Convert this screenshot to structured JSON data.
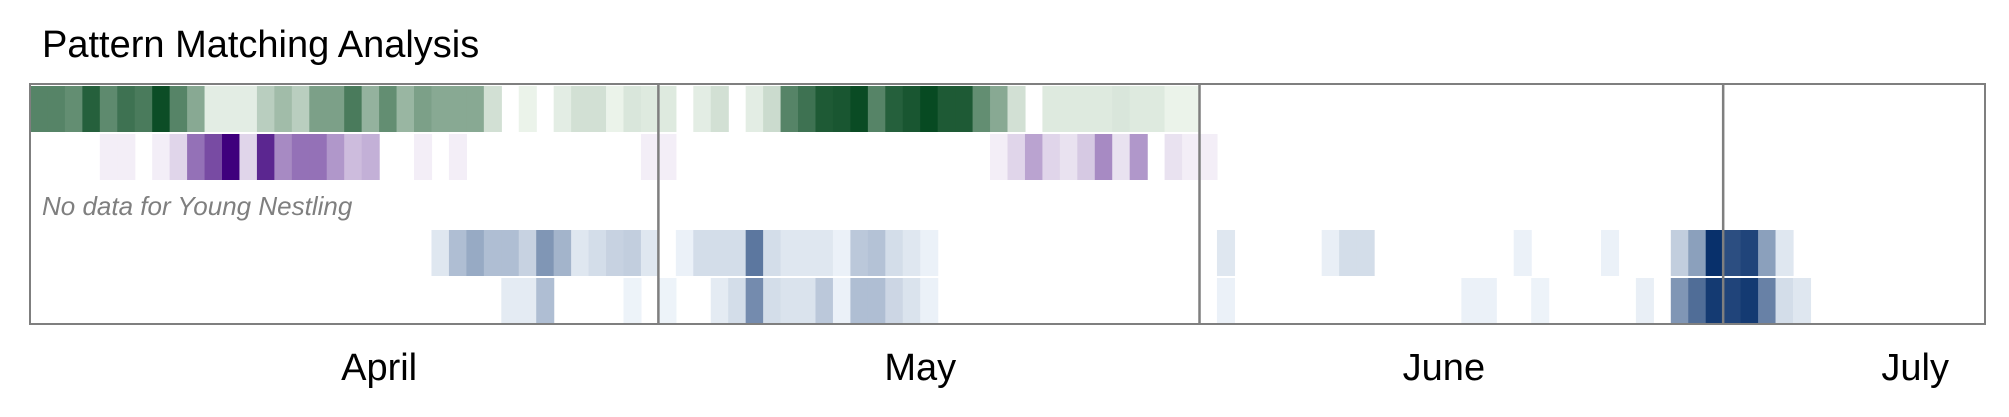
{
  "chart_data": {
    "type": "heatmap",
    "title": "Pattern Matching Analysis",
    "x_axis": {
      "type": "date",
      "range": [
        "2024-03-26",
        "2024-07-16"
      ],
      "month_labels": [
        {
          "label": "April",
          "center_date": "2024-04-15"
        },
        {
          "label": "May",
          "center_date": "2024-05-16"
        },
        {
          "label": "June",
          "center_date": "2024-06-15"
        },
        {
          "label": "July",
          "center_date": "2024-07-12"
        }
      ],
      "month_boundaries": [
        "2024-05-01",
        "2024-06-01",
        "2024-07-01"
      ]
    },
    "rows": [
      {
        "color_scale": [
          "#f7fcf5",
          "#00441b"
        ],
        "cells": [
          {
            "date": "2024-03-26",
            "v": 0.65
          },
          {
            "date": "2024-03-27",
            "v": 0.65
          },
          {
            "date": "2024-03-28",
            "v": 0.6
          },
          {
            "date": "2024-03-29",
            "v": 0.85
          },
          {
            "date": "2024-03-30",
            "v": 0.62
          },
          {
            "date": "2024-03-31",
            "v": 0.75
          },
          {
            "date": "2024-04-01",
            "v": 0.7
          },
          {
            "date": "2024-04-02",
            "v": 0.95
          },
          {
            "date": "2024-04-03",
            "v": 0.65
          },
          {
            "date": "2024-04-04",
            "v": 0.45
          },
          {
            "date": "2024-04-05",
            "v": 0.08
          },
          {
            "date": "2024-04-06",
            "v": 0.08
          },
          {
            "date": "2024-04-07",
            "v": 0.08
          },
          {
            "date": "2024-04-08",
            "v": 0.25
          },
          {
            "date": "2024-04-09",
            "v": 0.35
          },
          {
            "date": "2024-04-10",
            "v": 0.25
          },
          {
            "date": "2024-04-11",
            "v": 0.5
          },
          {
            "date": "2024-04-12",
            "v": 0.5
          },
          {
            "date": "2024-04-13",
            "v": 0.7
          },
          {
            "date": "2024-04-14",
            "v": 0.4
          },
          {
            "date": "2024-04-15",
            "v": 0.6
          },
          {
            "date": "2024-04-16",
            "v": 0.38
          },
          {
            "date": "2024-04-17",
            "v": 0.5
          },
          {
            "date": "2024-04-18",
            "v": 0.45
          },
          {
            "date": "2024-04-19",
            "v": 0.45
          },
          {
            "date": "2024-04-20",
            "v": 0.45
          },
          {
            "date": "2024-04-21",
            "v": 0.15
          },
          {
            "date": "2024-04-23",
            "v": 0.05
          },
          {
            "date": "2024-04-25",
            "v": 0.08
          },
          {
            "date": "2024-04-26",
            "v": 0.15
          },
          {
            "date": "2024-04-27",
            "v": 0.15
          },
          {
            "date": "2024-04-28",
            "v": 0.05
          },
          {
            "date": "2024-04-29",
            "v": 0.12
          },
          {
            "date": "2024-04-30",
            "v": 0.1
          },
          {
            "date": "2024-05-01",
            "v": 0.1
          },
          {
            "date": "2024-05-03",
            "v": 0.08
          },
          {
            "date": "2024-05-04",
            "v": 0.15
          },
          {
            "date": "2024-05-06",
            "v": 0.08
          },
          {
            "date": "2024-05-07",
            "v": 0.18
          },
          {
            "date": "2024-05-08",
            "v": 0.65
          },
          {
            "date": "2024-05-09",
            "v": 0.75
          },
          {
            "date": "2024-05-10",
            "v": 0.88
          },
          {
            "date": "2024-05-11",
            "v": 0.9
          },
          {
            "date": "2024-05-12",
            "v": 0.96
          },
          {
            "date": "2024-05-13",
            "v": 0.65
          },
          {
            "date": "2024-05-14",
            "v": 0.85
          },
          {
            "date": "2024-05-15",
            "v": 0.9
          },
          {
            "date": "2024-05-16",
            "v": 0.97
          },
          {
            "date": "2024-05-17",
            "v": 0.88
          },
          {
            "date": "2024-05-18",
            "v": 0.88
          },
          {
            "date": "2024-05-19",
            "v": 0.6
          },
          {
            "date": "2024-05-20",
            "v": 0.45
          },
          {
            "date": "2024-05-21",
            "v": 0.15
          },
          {
            "date": "2024-05-23",
            "v": 0.1
          },
          {
            "date": "2024-05-24",
            "v": 0.1
          },
          {
            "date": "2024-05-25",
            "v": 0.1
          },
          {
            "date": "2024-05-26",
            "v": 0.1
          },
          {
            "date": "2024-05-27",
            "v": 0.12
          },
          {
            "date": "2024-05-28",
            "v": 0.1
          },
          {
            "date": "2024-05-29",
            "v": 0.1
          },
          {
            "date": "2024-05-30",
            "v": 0.05
          },
          {
            "date": "2024-05-31",
            "v": 0.05
          }
        ]
      },
      {
        "color_scale": [
          "#fcfbfd",
          "#3f007d"
        ],
        "cells": [
          {
            "date": "2024-03-30",
            "v": 0.05
          },
          {
            "date": "2024-03-31",
            "v": 0.05
          },
          {
            "date": "2024-04-02",
            "v": 0.05
          },
          {
            "date": "2024-04-03",
            "v": 0.15
          },
          {
            "date": "2024-04-04",
            "v": 0.55
          },
          {
            "date": "2024-04-05",
            "v": 0.7
          },
          {
            "date": "2024-04-06",
            "v": 1.0
          },
          {
            "date": "2024-04-07",
            "v": 0.15
          },
          {
            "date": "2024-04-08",
            "v": 0.85
          },
          {
            "date": "2024-04-09",
            "v": 0.45
          },
          {
            "date": "2024-04-10",
            "v": 0.55
          },
          {
            "date": "2024-04-11",
            "v": 0.55
          },
          {
            "date": "2024-04-12",
            "v": 0.4
          },
          {
            "date": "2024-04-13",
            "v": 0.25
          },
          {
            "date": "2024-04-14",
            "v": 0.3
          },
          {
            "date": "2024-04-17",
            "v": 0.05
          },
          {
            "date": "2024-04-19",
            "v": 0.05
          },
          {
            "date": "2024-04-30",
            "v": 0.05
          },
          {
            "date": "2024-05-01",
            "v": 0.05
          },
          {
            "date": "2024-05-20",
            "v": 0.05
          },
          {
            "date": "2024-05-21",
            "v": 0.15
          },
          {
            "date": "2024-05-22",
            "v": 0.35
          },
          {
            "date": "2024-05-23",
            "v": 0.15
          },
          {
            "date": "2024-05-24",
            "v": 0.1
          },
          {
            "date": "2024-05-25",
            "v": 0.2
          },
          {
            "date": "2024-05-26",
            "v": 0.45
          },
          {
            "date": "2024-05-27",
            "v": 0.1
          },
          {
            "date": "2024-05-28",
            "v": 0.4
          },
          {
            "date": "2024-05-30",
            "v": 0.1
          },
          {
            "date": "2024-05-31",
            "v": 0.05
          },
          {
            "date": "2024-06-01",
            "v": 0.05
          }
        ]
      },
      {
        "color_scale": [
          "#f7fbff",
          "#08306b"
        ],
        "no_data_text": "No data for Young Nestling",
        "cells": []
      },
      {
        "color_scale": [
          "#f7fbff",
          "#08306b"
        ],
        "cells": [
          {
            "date": "2024-04-18",
            "v": 0.1
          },
          {
            "date": "2024-04-19",
            "v": 0.3
          },
          {
            "date": "2024-04-20",
            "v": 0.4
          },
          {
            "date": "2024-04-21",
            "v": 0.3
          },
          {
            "date": "2024-04-22",
            "v": 0.3
          },
          {
            "date": "2024-04-23",
            "v": 0.2
          },
          {
            "date": "2024-04-24",
            "v": 0.5
          },
          {
            "date": "2024-04-25",
            "v": 0.35
          },
          {
            "date": "2024-04-26",
            "v": 0.1
          },
          {
            "date": "2024-04-27",
            "v": 0.15
          },
          {
            "date": "2024-04-28",
            "v": 0.2
          },
          {
            "date": "2024-04-29",
            "v": 0.22
          },
          {
            "date": "2024-04-30",
            "v": 0.1
          },
          {
            "date": "2024-05-02",
            "v": 0.05
          },
          {
            "date": "2024-05-03",
            "v": 0.15
          },
          {
            "date": "2024-05-04",
            "v": 0.15
          },
          {
            "date": "2024-05-05",
            "v": 0.15
          },
          {
            "date": "2024-05-06",
            "v": 0.65
          },
          {
            "date": "2024-05-07",
            "v": 0.15
          },
          {
            "date": "2024-05-08",
            "v": 0.1
          },
          {
            "date": "2024-05-09",
            "v": 0.1
          },
          {
            "date": "2024-05-10",
            "v": 0.1
          },
          {
            "date": "2024-05-11",
            "v": 0.05
          },
          {
            "date": "2024-05-12",
            "v": 0.25
          },
          {
            "date": "2024-05-13",
            "v": 0.28
          },
          {
            "date": "2024-05-14",
            "v": 0.15
          },
          {
            "date": "2024-05-15",
            "v": 0.1
          },
          {
            "date": "2024-05-16",
            "v": 0.05
          },
          {
            "date": "2024-06-02",
            "v": 0.1
          },
          {
            "date": "2024-06-08",
            "v": 0.06
          },
          {
            "date": "2024-06-09",
            "v": 0.15
          },
          {
            "date": "2024-06-10",
            "v": 0.15
          },
          {
            "date": "2024-06-19",
            "v": 0.05
          },
          {
            "date": "2024-06-24",
            "v": 0.05
          },
          {
            "date": "2024-06-28",
            "v": 0.22
          },
          {
            "date": "2024-06-29",
            "v": 0.45
          },
          {
            "date": "2024-06-30",
            "v": 1.0
          },
          {
            "date": "2024-07-01",
            "v": 0.85
          },
          {
            "date": "2024-07-02",
            "v": 0.9
          },
          {
            "date": "2024-07-03",
            "v": 0.45
          },
          {
            "date": "2024-07-04",
            "v": 0.1
          }
        ]
      },
      {
        "color_scale": [
          "#f7fbff",
          "#08306b"
        ],
        "cells": [
          {
            "date": "2024-04-22",
            "v": 0.08
          },
          {
            "date": "2024-04-23",
            "v": 0.08
          },
          {
            "date": "2024-04-24",
            "v": 0.3
          },
          {
            "date": "2024-04-29",
            "v": 0.04
          },
          {
            "date": "2024-05-01",
            "v": 0.04
          },
          {
            "date": "2024-05-04",
            "v": 0.08
          },
          {
            "date": "2024-05-05",
            "v": 0.15
          },
          {
            "date": "2024-05-06",
            "v": 0.55
          },
          {
            "date": "2024-05-07",
            "v": 0.15
          },
          {
            "date": "2024-05-08",
            "v": 0.12
          },
          {
            "date": "2024-05-09",
            "v": 0.12
          },
          {
            "date": "2024-05-10",
            "v": 0.25
          },
          {
            "date": "2024-05-11",
            "v": 0.05
          },
          {
            "date": "2024-05-12",
            "v": 0.3
          },
          {
            "date": "2024-05-13",
            "v": 0.3
          },
          {
            "date": "2024-05-14",
            "v": 0.18
          },
          {
            "date": "2024-05-15",
            "v": 0.12
          },
          {
            "date": "2024-05-16",
            "v": 0.05
          },
          {
            "date": "2024-06-02",
            "v": 0.05
          },
          {
            "date": "2024-06-16",
            "v": 0.05
          },
          {
            "date": "2024-06-17",
            "v": 0.05
          },
          {
            "date": "2024-06-20",
            "v": 0.04
          },
          {
            "date": "2024-06-26",
            "v": 0.06
          },
          {
            "date": "2024-06-28",
            "v": 0.5
          },
          {
            "date": "2024-06-29",
            "v": 0.7
          },
          {
            "date": "2024-06-30",
            "v": 0.95
          },
          {
            "date": "2024-07-01",
            "v": 0.9
          },
          {
            "date": "2024-07-02",
            "v": 0.95
          },
          {
            "date": "2024-07-03",
            "v": 0.6
          },
          {
            "date": "2024-07-04",
            "v": 0.15
          },
          {
            "date": "2024-07-05",
            "v": 0.1
          }
        ]
      }
    ],
    "grid": false,
    "legend": "none"
  }
}
